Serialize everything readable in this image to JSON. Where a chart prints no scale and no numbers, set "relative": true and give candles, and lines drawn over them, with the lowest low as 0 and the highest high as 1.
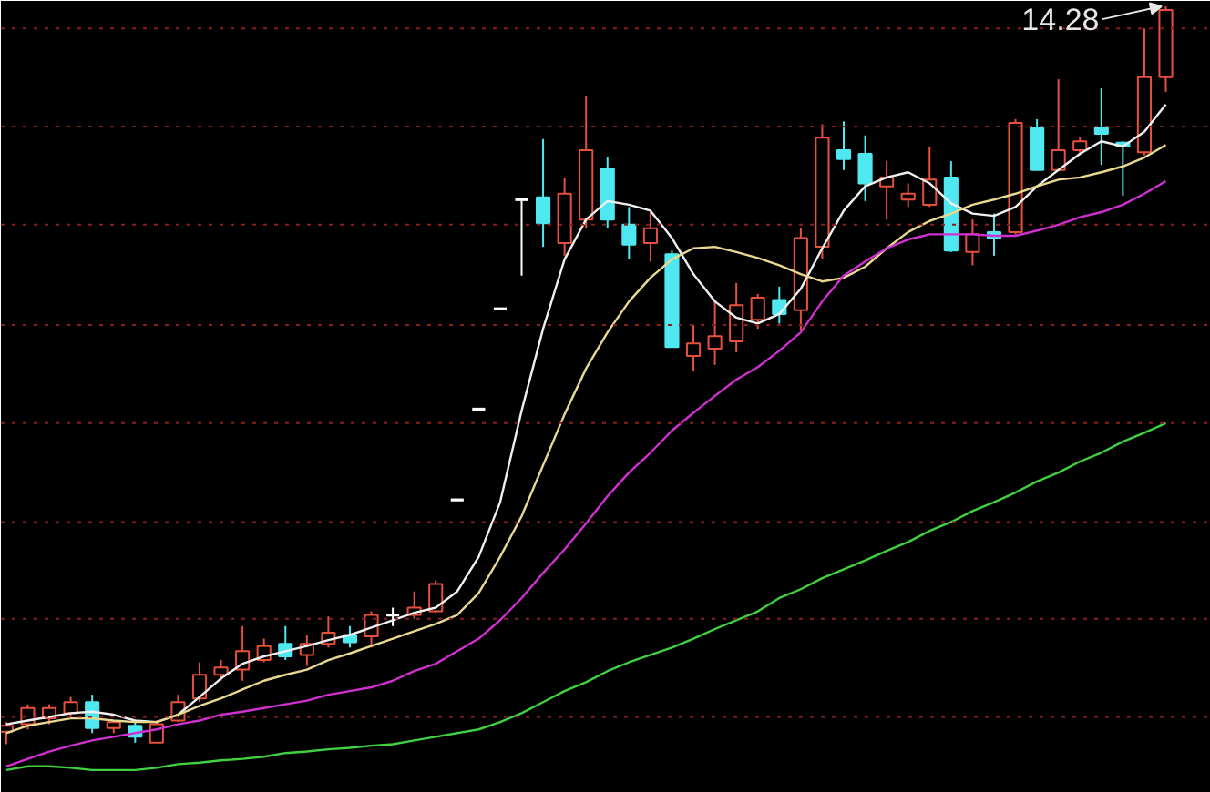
{
  "chart_data": {
    "type": "candlestick",
    "relative": true,
    "categories": [
      null,
      null,
      null,
      null,
      null,
      null,
      null,
      null,
      null,
      null,
      null,
      null,
      null,
      null,
      null,
      null,
      null,
      null,
      null,
      null,
      null,
      null,
      null,
      null,
      null,
      null,
      null,
      null,
      null,
      null,
      null,
      null,
      null,
      null,
      null,
      null,
      null,
      null,
      null,
      null,
      null,
      null,
      null,
      null,
      null,
      null,
      null,
      null,
      null,
      null,
      null,
      null,
      null,
      null,
      null
    ],
    "ohlc": [
      [
        0.017,
        0.03,
        0,
        0.025
      ],
      [
        0.027,
        0.054,
        0.02,
        0.049
      ],
      [
        0.035,
        0.054,
        0.027,
        0.049
      ],
      [
        0.042,
        0.064,
        0.037,
        0.057
      ],
      [
        0.057,
        0.067,
        0.015,
        0.022
      ],
      [
        0.022,
        0.032,
        0.015,
        0.03
      ],
      [
        0.025,
        0.032,
        0.002,
        0.01
      ],
      [
        0.002,
        0.032,
        0.002,
        0.027
      ],
      [
        0.032,
        0.067,
        0.03,
        0.057
      ],
      [
        0.062,
        0.111,
        0.057,
        0.094
      ],
      [
        0.094,
        0.114,
        0.086,
        0.104
      ],
      [
        0.101,
        0.16,
        0.086,
        0.126
      ],
      [
        0.114,
        0.143,
        0.111,
        0.133
      ],
      [
        0.136,
        0.16,
        0.114,
        0.119
      ],
      [
        0.121,
        0.148,
        0.106,
        0.136
      ],
      [
        0.136,
        0.173,
        0.131,
        0.151
      ],
      [
        0.148,
        0.16,
        0.131,
        0.138
      ],
      [
        0.146,
        0.18,
        0.131,
        0.175
      ],
      [
        0.175,
        0.185,
        0.16,
        0.175
      ],
      [
        0.175,
        0.207,
        0.17,
        0.185
      ],
      [
        0.18,
        0.222,
        0.178,
        0.217
      ],
      [
        0.331,
        0.331,
        0.331,
        0.331
      ],
      [
        0.454,
        0.454,
        0.454,
        0.454
      ],
      [
        0.59,
        0.59,
        0.59,
        0.59
      ],
      [
        0.738,
        0.738,
        0.635,
        0.738
      ],
      [
        0.741,
        0.82,
        0.674,
        0.706
      ],
      [
        0.679,
        0.768,
        0.662,
        0.746
      ],
      [
        0.711,
        0.879,
        0.699,
        0.805
      ],
      [
        0.78,
        0.795,
        0.699,
        0.711
      ],
      [
        0.704,
        0.728,
        0.657,
        0.677
      ],
      [
        0.679,
        0.721,
        0.654,
        0.699
      ],
      [
        0.664,
        0.669,
        0.538,
        0.538
      ],
      [
        0.526,
        0.568,
        0.506,
        0.543
      ],
      [
        0.536,
        0.6,
        0.514,
        0.553
      ],
      [
        0.546,
        0.625,
        0.531,
        0.595
      ],
      [
        0.575,
        0.61,
        0.563,
        0.605
      ],
      [
        0.602,
        0.62,
        0.57,
        0.583
      ],
      [
        0.588,
        0.699,
        0.56,
        0.686
      ],
      [
        0.674,
        0.84,
        0.657,
        0.822
      ],
      [
        0.805,
        0.844,
        0.778,
        0.793
      ],
      [
        0.8,
        0.825,
        0.736,
        0.76
      ],
      [
        0.756,
        0.79,
        0.711,
        0.768
      ],
      [
        0.738,
        0.76,
        0.728,
        0.746
      ],
      [
        0.731,
        0.81,
        0.728,
        0.765
      ],
      [
        0.768,
        0.79,
        0.667,
        0.669
      ],
      [
        0.667,
        0.711,
        0.649,
        0.691
      ],
      [
        0.694,
        0.719,
        0.662,
        0.686
      ],
      [
        0.694,
        0.847,
        0.691,
        0.842
      ],
      [
        0.835,
        0.847,
        0.778,
        0.778
      ],
      [
        0.778,
        0.901,
        0.778,
        0.805
      ],
      [
        0.805,
        0.822,
        0.8,
        0.817
      ],
      [
        0.835,
        0.889,
        0.785,
        0.827
      ],
      [
        0.815,
        0.817,
        0.743,
        0.81
      ],
      [
        0.802,
        0.97,
        0.798,
        0.904
      ],
      [
        0.904,
        1,
        0.884,
        0.995
      ]
    ],
    "colors": [
      "#e8503c",
      "#e8503c",
      "#e8503c",
      "#e8503c",
      "#50e8f0",
      "#e8503c",
      "#50e8f0",
      "#e8503c",
      "#e8503c",
      "#e8503c",
      "#e8503c",
      "#e8503c",
      "#e8503c",
      "#50e8f0",
      "#e8503c",
      "#e8503c",
      "#50e8f0",
      "#e8503c",
      "#ffffff",
      "#e8503c",
      "#e8503c",
      "#ffffff",
      "#ffffff",
      "#ffffff",
      "#ffffff",
      "#50e8f0",
      "#e8503c",
      "#e8503c",
      "#50e8f0",
      "#50e8f0",
      "#e8503c",
      "#50e8f0",
      "#e8503c",
      "#e8503c",
      "#e8503c",
      "#e8503c",
      "#50e8f0",
      "#e8503c",
      "#e8503c",
      "#50e8f0",
      "#50e8f0",
      "#e8503c",
      "#e8503c",
      "#e8503c",
      "#50e8f0",
      "#e8503c",
      "#50e8f0",
      "#e8503c",
      "#50e8f0",
      "#e8503c",
      "#e8503c",
      "#50e8f0",
      "#50e8f0",
      "#e8503c",
      "#e8503c"
    ],
    "series": [
      {
        "type": "line",
        "color": "#f0f0f0",
        "values": [
          0.027,
          0.032,
          0.037,
          0.042,
          0.044,
          0.04,
          0.032,
          0.03,
          0.04,
          0.064,
          0.089,
          0.109,
          0.119,
          0.126,
          0.133,
          0.141,
          0.148,
          0.158,
          0.168,
          0.178,
          0.185,
          0.207,
          0.254,
          0.328,
          0.452,
          0.563,
          0.657,
          0.711,
          0.736,
          0.731,
          0.723,
          0.686,
          0.637,
          0.6,
          0.578,
          0.57,
          0.583,
          0.617,
          0.672,
          0.723,
          0.756,
          0.768,
          0.775,
          0.76,
          0.733,
          0.719,
          0.716,
          0.728,
          0.756,
          0.778,
          0.8,
          0.817,
          0.81,
          0.83,
          0.867
        ]
      },
      {
        "type": "line",
        "color": "#e8d890",
        "values": [
          0.015,
          0.025,
          0.03,
          0.035,
          0.035,
          0.032,
          0.03,
          0.03,
          0.04,
          0.052,
          0.062,
          0.074,
          0.086,
          0.094,
          0.101,
          0.114,
          0.123,
          0.133,
          0.143,
          0.153,
          0.163,
          0.175,
          0.205,
          0.254,
          0.309,
          0.378,
          0.447,
          0.509,
          0.558,
          0.6,
          0.632,
          0.657,
          0.672,
          0.674,
          0.667,
          0.659,
          0.649,
          0.637,
          0.627,
          0.632,
          0.647,
          0.672,
          0.694,
          0.709,
          0.719,
          0.731,
          0.738,
          0.746,
          0.756,
          0.765,
          0.768,
          0.775,
          0.783,
          0.795,
          0.812
        ]
      },
      {
        "type": "line",
        "color": "#d030d0",
        "values": [
          -0.03,
          -0.02,
          -0.01,
          -0.002,
          0.005,
          0.01,
          0.015,
          0.02,
          0.027,
          0.032,
          0.04,
          0.044,
          0.049,
          0.054,
          0.059,
          0.067,
          0.072,
          0.077,
          0.086,
          0.099,
          0.109,
          0.126,
          0.143,
          0.168,
          0.198,
          0.232,
          0.264,
          0.299,
          0.336,
          0.368,
          0.395,
          0.425,
          0.449,
          0.472,
          0.494,
          0.511,
          0.533,
          0.558,
          0.6,
          0.635,
          0.654,
          0.672,
          0.684,
          0.691,
          0.691,
          0.691,
          0.689,
          0.689,
          0.696,
          0.704,
          0.714,
          0.721,
          0.731,
          0.746,
          0.763
        ]
      },
      {
        "type": "line",
        "color": "#40d040",
        "values": [
          -0.035,
          -0.03,
          -0.03,
          -0.032,
          -0.035,
          -0.035,
          -0.035,
          -0.032,
          -0.027,
          -0.025,
          -0.022,
          -0.02,
          -0.017,
          -0.012,
          -0.01,
          -0.007,
          -0.005,
          -0.002,
          0,
          0.005,
          0.01,
          0.015,
          0.02,
          0.03,
          0.042,
          0.057,
          0.072,
          0.084,
          0.099,
          0.111,
          0.121,
          0.131,
          0.143,
          0.156,
          0.168,
          0.18,
          0.198,
          0.21,
          0.225,
          0.237,
          0.249,
          0.262,
          0.274,
          0.289,
          0.301,
          0.316,
          0.328,
          0.341,
          0.356,
          0.368,
          0.383,
          0.395,
          0.41,
          0.422,
          0.435
        ]
      }
    ],
    "ref_lines": [
      {
        "axis": "y",
        "value": 0.97,
        "color": "#8c1e1e",
        "line_style": "dotted"
      },
      {
        "axis": "y",
        "value": 0.837,
        "color": "#8c1e1e",
        "line_style": "dotted"
      },
      {
        "axis": "y",
        "value": 0.704,
        "color": "#8c1e1e",
        "line_style": "dotted"
      },
      {
        "axis": "y",
        "value": 0.568,
        "color": "#8c1e1e",
        "line_style": "dotted"
      },
      {
        "axis": "y",
        "value": 0.435,
        "color": "#8c1e1e",
        "line_style": "dotted"
      },
      {
        "axis": "y",
        "value": 0.301,
        "color": "#8c1e1e",
        "line_style": "dotted"
      },
      {
        "axis": "y",
        "value": 0.17,
        "color": "#8c1e1e",
        "line_style": "dotted"
      },
      {
        "axis": "y",
        "value": 0.037,
        "color": "#8c1e1e",
        "line_style": "dotted"
      }
    ],
    "annotations": [
      "14.28"
    ]
  }
}
